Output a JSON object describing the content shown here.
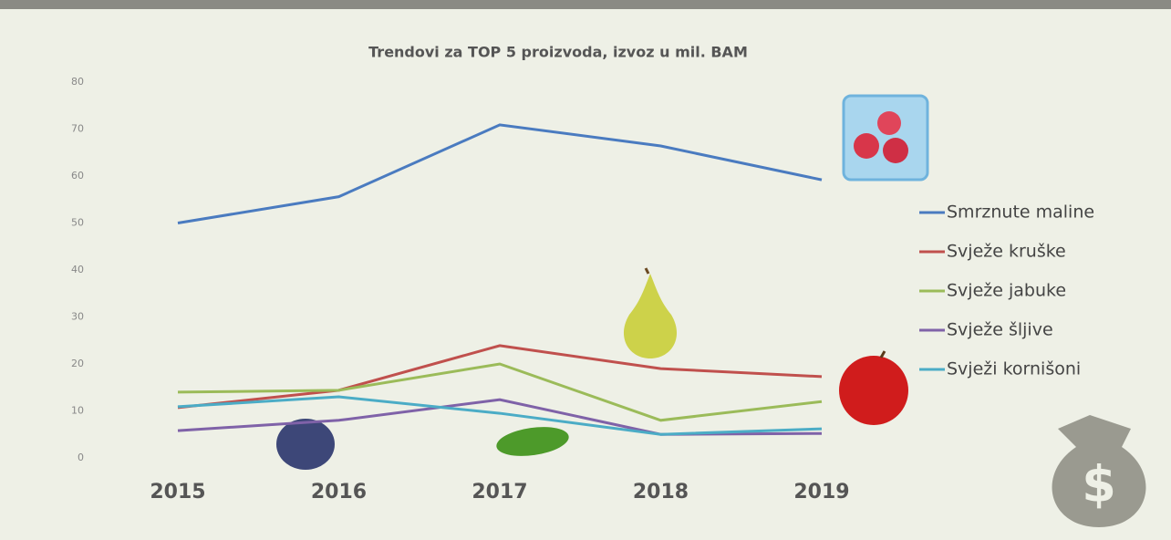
{
  "chart_data": {
    "type": "line",
    "title": "Trendovi za TOP 5 proizvoda, izvoz u mil. BAM",
    "categories": [
      "2015",
      "2016",
      "2017",
      "2018",
      "2019"
    ],
    "series": [
      {
        "name": "Smrznute maline",
        "color": "#4a7bc0",
        "values": [
          50,
          55.6,
          70.9,
          66.4,
          59.2
        ]
      },
      {
        "name": "Svježe kruške",
        "color": "#c0504d",
        "values": [
          10.7,
          14.4,
          23.9,
          19,
          17.3
        ]
      },
      {
        "name": "Svježe jabuke",
        "color": "#9bbb59",
        "values": [
          14,
          14.4,
          20,
          8,
          12
        ]
      },
      {
        "name": "Svježe šljive",
        "color": "#7f62a8",
        "values": [
          5.8,
          8,
          12.4,
          5,
          5.2
        ]
      },
      {
        "name": "Svježi kornišoni",
        "color": "#4bacc6",
        "values": [
          10.9,
          13,
          9.5,
          5,
          6.2
        ]
      }
    ],
    "ylim": [
      0,
      80
    ],
    "yticks": [
      0,
      10,
      20,
      30,
      40,
      50,
      60,
      70,
      80
    ],
    "grid": false,
    "legend": "right"
  }
}
